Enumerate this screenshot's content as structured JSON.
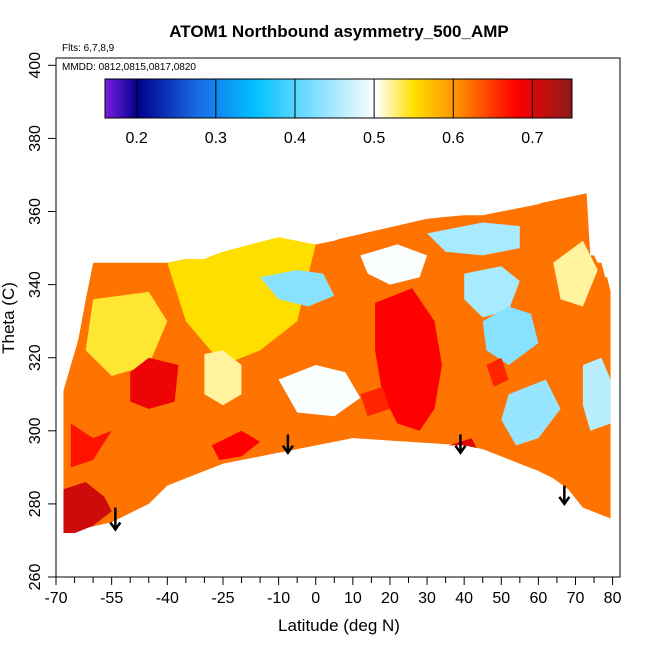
{
  "chart_data": {
    "type": "heatmap",
    "title": "ATOM1 Northbound asymmetry_500_AMP",
    "subtitle_flights": "Flts: 6,7,8,9",
    "subtitle_dates": "MMDD: 0812,0815,0817,0820",
    "xlabel": "Latitude (deg N)",
    "ylabel": "Theta (C)",
    "xlim": [
      -70,
      82
    ],
    "ylim": [
      260,
      402
    ],
    "xticks": [
      -70,
      -55,
      -40,
      -25,
      -10,
      0,
      10,
      20,
      30,
      40,
      50,
      60,
      70,
      80
    ],
    "xticks_minor": [
      -65,
      -60,
      -50,
      -45,
      -35,
      -30,
      -20,
      -15,
      -5,
      5,
      15,
      25,
      35,
      45,
      55,
      65,
      75
    ],
    "yticks": [
      260,
      280,
      300,
      320,
      340,
      360,
      380,
      400
    ],
    "colorbar": {
      "range": [
        0.16,
        0.75
      ],
      "ticks": [
        0.2,
        0.3,
        0.4,
        0.5,
        0.6,
        0.7
      ],
      "colors": [
        "#7a1fe0",
        "#00008b",
        "#1a6be6",
        "#00c0ff",
        "#ffffff",
        "#ffe000",
        "#ff8a00",
        "#ff0000",
        "#8b1a1a"
      ]
    },
    "outline_top": [
      [
        -68,
        311
      ],
      [
        -66,
        318
      ],
      [
        -64,
        325
      ],
      [
        -62,
        336
      ],
      [
        -60,
        346
      ],
      [
        -55,
        346
      ],
      [
        -50,
        346
      ],
      [
        -45,
        346
      ],
      [
        -40,
        346
      ],
      [
        -35,
        347
      ],
      [
        -30,
        347
      ],
      [
        -25,
        349
      ],
      [
        -20,
        351
      ],
      [
        -15,
        352
      ],
      [
        -10,
        353
      ],
      [
        -5,
        352
      ],
      [
        0,
        351
      ],
      [
        5,
        352
      ],
      [
        10,
        354
      ],
      [
        15,
        356
      ],
      [
        20,
        357
      ],
      [
        25,
        358
      ],
      [
        30,
        358
      ],
      [
        35,
        359
      ],
      [
        40,
        359
      ],
      [
        45,
        359
      ],
      [
        50,
        360
      ],
      [
        55,
        361
      ],
      [
        60,
        362
      ],
      [
        65,
        364
      ],
      [
        68,
        364
      ],
      [
        71,
        365
      ],
      [
        73,
        365
      ],
      [
        74,
        348
      ],
      [
        75,
        348
      ],
      [
        76,
        346
      ],
      [
        77,
        346
      ],
      [
        78,
        342
      ],
      [
        79,
        342
      ],
      [
        79.5,
        338
      ]
    ],
    "outline_bottom": [
      [
        79.5,
        276
      ],
      [
        76,
        276
      ],
      [
        72,
        279
      ],
      [
        68,
        284
      ],
      [
        64,
        287
      ],
      [
        60,
        289
      ],
      [
        55,
        291
      ],
      [
        50,
        293
      ],
      [
        45,
        295
      ],
      [
        40,
        296
      ],
      [
        35,
        296
      ],
      [
        30,
        296
      ],
      [
        25,
        297
      ],
      [
        20,
        297
      ],
      [
        15,
        297
      ],
      [
        10,
        298
      ],
      [
        5,
        296
      ],
      [
        0,
        294
      ],
      [
        -5,
        294
      ],
      [
        -10,
        294
      ],
      [
        -15,
        293
      ],
      [
        -20,
        292
      ],
      [
        -25,
        291
      ],
      [
        -30,
        289
      ],
      [
        -35,
        287
      ],
      [
        -40,
        285
      ],
      [
        -45,
        280
      ],
      [
        -50,
        276
      ],
      [
        -55,
        275
      ],
      [
        -60,
        273
      ],
      [
        -65,
        272
      ],
      [
        -68,
        272
      ]
    ],
    "arrows": [
      {
        "x": -54,
        "y_top": 279,
        "y_bottom": 273
      },
      {
        "x": -7.5,
        "y_top": 299,
        "y_bottom": 294
      },
      {
        "x": 39,
        "y_top": 299,
        "y_bottom": 294
      },
      {
        "x": 67,
        "y_top": 285,
        "y_bottom": 280
      }
    ],
    "regions": [
      {
        "level": 0.62,
        "points": [
          [
            -68,
            272
          ],
          [
            -68,
            311
          ],
          [
            -64,
            325
          ],
          [
            -62,
            336
          ],
          [
            -60,
            346
          ],
          [
            -25,
            349
          ],
          [
            0,
            351
          ],
          [
            30,
            358
          ],
          [
            50,
            360
          ],
          [
            73,
            365
          ],
          [
            79.5,
            338
          ],
          [
            79.5,
            276
          ],
          [
            72,
            279
          ],
          [
            60,
            289
          ],
          [
            40,
            296
          ],
          [
            10,
            298
          ],
          [
            -10,
            294
          ],
          [
            -30,
            289
          ],
          [
            -45,
            280
          ],
          [
            -55,
            275
          ]
        ]
      },
      {
        "level": 0.55,
        "points": [
          [
            -40,
            346
          ],
          [
            -25,
            349
          ],
          [
            -10,
            353
          ],
          [
            0,
            351
          ],
          [
            -5,
            330
          ],
          [
            -15,
            322
          ],
          [
            -25,
            318
          ],
          [
            -35,
            330
          ]
        ]
      },
      {
        "level": 0.54,
        "points": [
          [
            -60,
            336
          ],
          [
            -45,
            338
          ],
          [
            -40,
            330
          ],
          [
            -45,
            318
          ],
          [
            -55,
            315
          ],
          [
            -62,
            322
          ]
        ]
      },
      {
        "level": 0.43,
        "points": [
          [
            -15,
            342
          ],
          [
            -5,
            344
          ],
          [
            2,
            343
          ],
          [
            5,
            337
          ],
          [
            -2,
            334
          ],
          [
            -10,
            336
          ]
        ]
      },
      {
        "level": 0.52,
        "points": [
          [
            -30,
            321
          ],
          [
            -25,
            322
          ],
          [
            -20,
            318
          ],
          [
            -20,
            310
          ],
          [
            -25,
            307
          ],
          [
            -30,
            310
          ]
        ]
      },
      {
        "level": 0.5,
        "points": [
          [
            -10,
            314
          ],
          [
            0,
            318
          ],
          [
            8,
            316
          ],
          [
            12,
            309
          ],
          [
            5,
            304
          ],
          [
            -5,
            305
          ]
        ]
      },
      {
        "level": 0.5,
        "points": [
          [
            12,
            348
          ],
          [
            22,
            351
          ],
          [
            30,
            348
          ],
          [
            28,
            342
          ],
          [
            20,
            340
          ],
          [
            14,
            343
          ]
        ]
      },
      {
        "level": 0.45,
        "points": [
          [
            30,
            354
          ],
          [
            45,
            357
          ],
          [
            55,
            356
          ],
          [
            55,
            350
          ],
          [
            45,
            348
          ],
          [
            35,
            349
          ]
        ]
      },
      {
        "level": 0.45,
        "points": [
          [
            40,
            343
          ],
          [
            50,
            345
          ],
          [
            55,
            341
          ],
          [
            52,
            333
          ],
          [
            45,
            331
          ],
          [
            40,
            336
          ]
        ]
      },
      {
        "level": 0.43,
        "points": [
          [
            45,
            330
          ],
          [
            52,
            334
          ],
          [
            58,
            332
          ],
          [
            60,
            324
          ],
          [
            52,
            318
          ],
          [
            46,
            322
          ]
        ]
      },
      {
        "level": 0.44,
        "points": [
          [
            52,
            310
          ],
          [
            62,
            314
          ],
          [
            66,
            306
          ],
          [
            60,
            298
          ],
          [
            54,
            296
          ],
          [
            50,
            303
          ]
        ]
      },
      {
        "level": 0.46,
        "points": [
          [
            72,
            318
          ],
          [
            77,
            320
          ],
          [
            79.5,
            314
          ],
          [
            79.5,
            302
          ],
          [
            74,
            300
          ],
          [
            72,
            307
          ]
        ]
      },
      {
        "level": 0.52,
        "points": [
          [
            64,
            346
          ],
          [
            72,
            352
          ],
          [
            76,
            344
          ],
          [
            72,
            334
          ],
          [
            66,
            336
          ]
        ]
      },
      {
        "level": 0.68,
        "points": [
          [
            16,
            335
          ],
          [
            26,
            339
          ],
          [
            32,
            330
          ],
          [
            34,
            318
          ],
          [
            32,
            306
          ],
          [
            28,
            300
          ],
          [
            22,
            302
          ],
          [
            18,
            310
          ],
          [
            16,
            322
          ]
        ]
      },
      {
        "level": 0.69,
        "points": [
          [
            -50,
            316
          ],
          [
            -45,
            320
          ],
          [
            -37,
            318
          ],
          [
            -38,
            308
          ],
          [
            -45,
            306
          ],
          [
            -50,
            308
          ]
        ]
      },
      {
        "level": 0.67,
        "points": [
          [
            -66,
            302
          ],
          [
            -60,
            298
          ],
          [
            -55,
            300
          ],
          [
            -60,
            292
          ],
          [
            -66,
            290
          ]
        ]
      },
      {
        "level": 0.71,
        "points": [
          [
            -68,
            272
          ],
          [
            -68,
            284
          ],
          [
            -62,
            286
          ],
          [
            -57,
            282
          ],
          [
            -55,
            278
          ],
          [
            -60,
            274
          ],
          [
            -65,
            272
          ]
        ]
      },
      {
        "level": 0.68,
        "points": [
          [
            -28,
            296
          ],
          [
            -20,
            300
          ],
          [
            -15,
            297
          ],
          [
            -20,
            293
          ],
          [
            -26,
            292
          ]
        ]
      },
      {
        "level": 0.66,
        "points": [
          [
            12,
            310
          ],
          [
            18,
            312
          ],
          [
            20,
            306
          ],
          [
            14,
            304
          ]
        ]
      },
      {
        "level": 0.66,
        "points": [
          [
            46,
            318
          ],
          [
            50,
            320
          ],
          [
            52,
            314
          ],
          [
            48,
            312
          ]
        ]
      },
      {
        "level": 0.7,
        "points": [
          [
            36,
            296
          ],
          [
            42,
            298
          ],
          [
            44,
            294
          ],
          [
            40,
            293
          ]
        ]
      }
    ]
  }
}
